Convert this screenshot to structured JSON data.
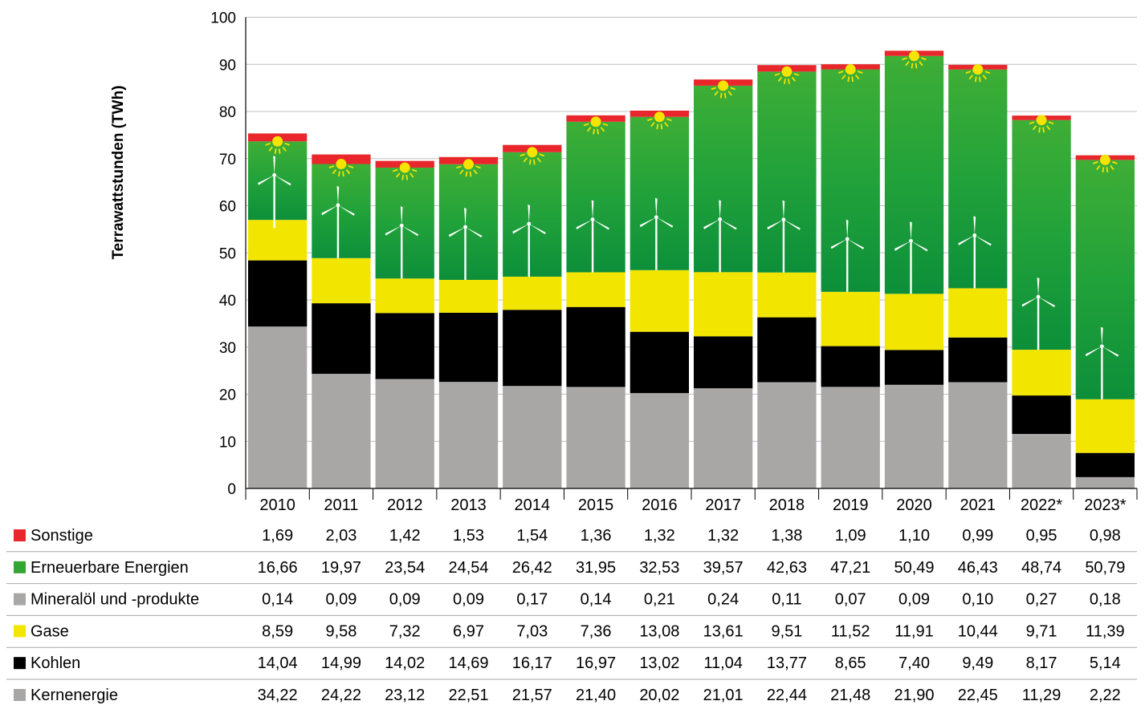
{
  "chart_data": {
    "type": "bar",
    "stacked": true,
    "ylabel": "Terrawattstunden (TWh)",
    "ylim": [
      0,
      100
    ],
    "yticks": [
      "0",
      "10",
      "20",
      "30",
      "40",
      "50",
      "60",
      "70",
      "80",
      "90",
      "100"
    ],
    "categories": [
      "2010",
      "2011",
      "2012",
      "2013",
      "2014",
      "2015",
      "2016",
      "2017",
      "2018",
      "2019",
      "2020",
      "2021",
      "2022*",
      "2023*"
    ],
    "stack_order": [
      "Kernenergie",
      "Mineralöl und -produkte",
      "Kohlen",
      "Gase",
      "Erneuerbare Energien",
      "Sonstige"
    ],
    "series": [
      {
        "name": "Sonstige",
        "color": "#e8262b",
        "values": [
          1.69,
          2.03,
          1.42,
          1.53,
          1.54,
          1.36,
          1.32,
          1.32,
          1.38,
          1.09,
          1.1,
          0.99,
          0.95,
          0.98
        ],
        "labels": [
          "1,69",
          "2,03",
          "1,42",
          "1,53",
          "1,54",
          "1,36",
          "1,32",
          "1,32",
          "1,38",
          "1,09",
          "1,10",
          "0,99",
          "0,95",
          "0,98"
        ]
      },
      {
        "name": "Erneuerbare Energien",
        "color": "#33a532",
        "values": [
          16.66,
          19.97,
          23.54,
          24.54,
          26.42,
          31.95,
          32.53,
          39.57,
          42.63,
          47.21,
          50.49,
          46.43,
          48.74,
          50.79
        ],
        "labels": [
          "16,66",
          "19,97",
          "23,54",
          "24,54",
          "26,42",
          "31,95",
          "32,53",
          "39,57",
          "42,63",
          "47,21",
          "50,49",
          "46,43",
          "48,74",
          "50,79"
        ]
      },
      {
        "name": "Mineralöl und -produkte",
        "color": "#a9a6a6",
        "values": [
          0.14,
          0.09,
          0.09,
          0.09,
          0.17,
          0.14,
          0.21,
          0.24,
          0.11,
          0.07,
          0.09,
          0.1,
          0.27,
          0.18
        ],
        "labels": [
          "0,14",
          "0,09",
          "0,09",
          "0,09",
          "0,17",
          "0,14",
          "0,21",
          "0,24",
          "0,11",
          "0,07",
          "0,09",
          "0,10",
          "0,27",
          "0,18"
        ]
      },
      {
        "name": "Gase",
        "color": "#f2e600",
        "values": [
          8.59,
          9.58,
          7.32,
          6.97,
          7.03,
          7.36,
          13.08,
          13.61,
          9.51,
          11.52,
          11.91,
          10.44,
          9.71,
          11.39
        ],
        "labels": [
          "8,59",
          "9,58",
          "7,32",
          "6,97",
          "7,03",
          "7,36",
          "13,08",
          "13,61",
          "9,51",
          "11,52",
          "11,91",
          "10,44",
          "9,71",
          "11,39"
        ]
      },
      {
        "name": "Kohlen",
        "color": "#000000",
        "values": [
          14.04,
          14.99,
          14.02,
          14.69,
          16.17,
          16.97,
          13.02,
          11.04,
          13.77,
          8.65,
          7.4,
          9.49,
          8.17,
          5.14
        ],
        "labels": [
          "14,04",
          "14,99",
          "14,02",
          "14,69",
          "16,17",
          "16,97",
          "13,02",
          "11,04",
          "13,77",
          "8,65",
          "7,40",
          "9,49",
          "8,17",
          "5,14"
        ]
      },
      {
        "name": "Kernenergie",
        "color": "#a9a6a6",
        "values": [
          34.22,
          24.22,
          23.12,
          22.51,
          21.57,
          21.4,
          20.02,
          21.01,
          22.44,
          21.48,
          21.9,
          22.45,
          11.29,
          2.22
        ],
        "labels": [
          "34,22",
          "24,22",
          "23,12",
          "22,51",
          "21,57",
          "21,40",
          "20,02",
          "21,01",
          "22,44",
          "21,48",
          "21,90",
          "22,45",
          "11,29",
          "2,22"
        ]
      }
    ],
    "icons": {
      "renewables": [
        "wind-turbine-icon",
        "sun-icon"
      ]
    }
  }
}
